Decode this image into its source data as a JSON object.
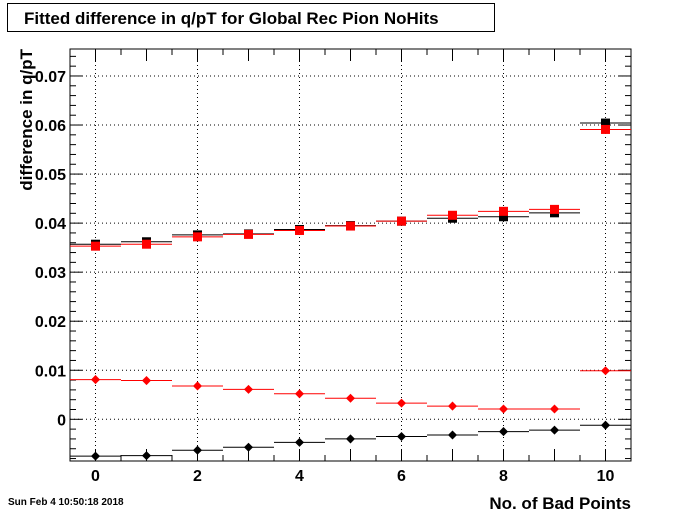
{
  "header": {
    "title": "Fitted difference in q/pT for Global Rec Pion NoHits"
  },
  "footer": {
    "timestamp": "Sun Feb  4 10:50:18 2018"
  },
  "chart_data": {
    "type": "scatter",
    "title": "Fitted difference in q/pT for Global Rec Pion NoHits",
    "xlabel": "No. of Bad Points",
    "ylabel": "difference in q/pT",
    "xlim": [
      -0.5,
      10.5
    ],
    "ylim": [
      -0.0085,
      0.0755
    ],
    "xticks": [
      0,
      2,
      4,
      6,
      8,
      10
    ],
    "xtick_labels": [
      "0",
      "2",
      "4",
      "6",
      "8",
      "10"
    ],
    "yticks": [
      0,
      0.01,
      0.02,
      0.03,
      0.04,
      0.05,
      0.06,
      0.07
    ],
    "ytick_labels": [
      "0",
      "0.01",
      "0.02",
      "0.03",
      "0.04",
      "0.05",
      "0.06",
      "0.07"
    ],
    "grid": true,
    "x": [
      0,
      1,
      2,
      3,
      4,
      5,
      6,
      7,
      8,
      9,
      10
    ],
    "series": [
      {
        "marker": "square",
        "color": "#000000",
        "values": [
          0.0357,
          0.0362,
          0.0376,
          0.0378,
          0.0387,
          0.0395,
          0.0404,
          0.041,
          0.0413,
          0.0421,
          0.0604
        ]
      },
      {
        "marker": "square",
        "color": "#ff0000",
        "values": [
          0.0353,
          0.0357,
          0.0372,
          0.0377,
          0.0385,
          0.0394,
          0.0404,
          0.0416,
          0.0424,
          0.0428,
          0.0591
        ]
      },
      {
        "marker": "circle",
        "color": "#ff0000",
        "values": [
          0.0081,
          0.0079,
          0.0068,
          0.0061,
          0.0052,
          0.0043,
          0.0033,
          0.0027,
          0.0021,
          0.0021,
          0.0099
        ]
      },
      {
        "marker": "circle",
        "color": "#000000",
        "values": [
          -0.0075,
          -0.0074,
          -0.0063,
          -0.0057,
          -0.0047,
          -0.004,
          -0.0035,
          -0.0032,
          -0.0025,
          -0.0022,
          -0.0012
        ]
      }
    ]
  }
}
